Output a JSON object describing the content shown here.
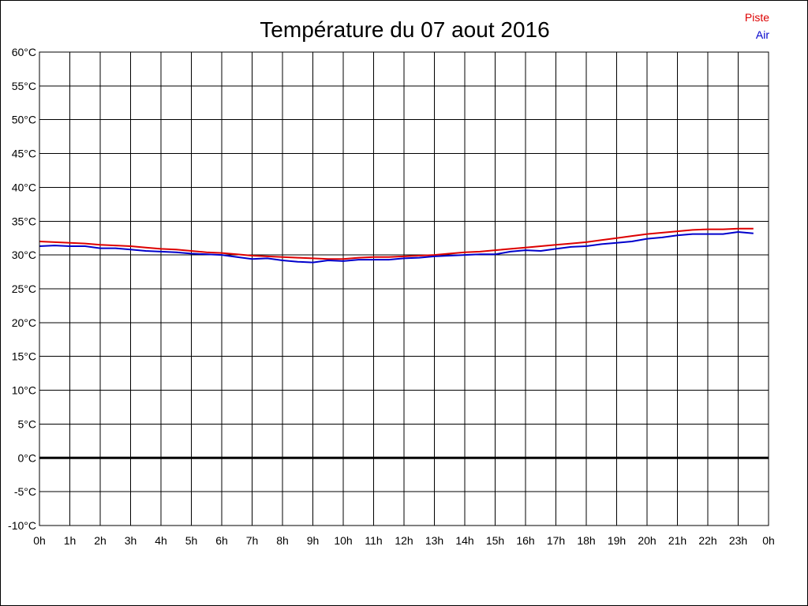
{
  "chart_data": {
    "type": "line",
    "title": "Température du 07 aout 2016",
    "xlabel": "",
    "ylabel": "",
    "ylim": [
      -10,
      60
    ],
    "xlim": [
      0,
      24
    ],
    "grid": true,
    "legend_position": "top-right",
    "y_ticks": [
      {
        "value": 60,
        "label": "60°C"
      },
      {
        "value": 55,
        "label": "55°C"
      },
      {
        "value": 50,
        "label": "50°C"
      },
      {
        "value": 45,
        "label": "45°C"
      },
      {
        "value": 40,
        "label": "40°C"
      },
      {
        "value": 35,
        "label": "35°C"
      },
      {
        "value": 30,
        "label": "30°C"
      },
      {
        "value": 25,
        "label": "25°C"
      },
      {
        "value": 20,
        "label": "20°C"
      },
      {
        "value": 15,
        "label": "15°C"
      },
      {
        "value": 10,
        "label": "10°C"
      },
      {
        "value": 5,
        "label": "5°C"
      },
      {
        "value": 0,
        "label": "0°C"
      },
      {
        "value": -5,
        "label": "-5°C"
      },
      {
        "value": -10,
        "label": "-10°C"
      }
    ],
    "x_ticks": [
      {
        "value": 0,
        "label": "0h"
      },
      {
        "value": 1,
        "label": "1h"
      },
      {
        "value": 2,
        "label": "2h"
      },
      {
        "value": 3,
        "label": "3h"
      },
      {
        "value": 4,
        "label": "4h"
      },
      {
        "value": 5,
        "label": "5h"
      },
      {
        "value": 6,
        "label": "6h"
      },
      {
        "value": 7,
        "label": "7h"
      },
      {
        "value": 8,
        "label": "8h"
      },
      {
        "value": 9,
        "label": "9h"
      },
      {
        "value": 10,
        "label": "10h"
      },
      {
        "value": 11,
        "label": "11h"
      },
      {
        "value": 12,
        "label": "12h"
      },
      {
        "value": 13,
        "label": "13h"
      },
      {
        "value": 14,
        "label": "14h"
      },
      {
        "value": 15,
        "label": "15h"
      },
      {
        "value": 16,
        "label": "16h"
      },
      {
        "value": 17,
        "label": "17h"
      },
      {
        "value": 18,
        "label": "18h"
      },
      {
        "value": 19,
        "label": "19h"
      },
      {
        "value": 20,
        "label": "20h"
      },
      {
        "value": 21,
        "label": "21h"
      },
      {
        "value": 22,
        "label": "22h"
      },
      {
        "value": 23,
        "label": "23h"
      },
      {
        "value": 24,
        "label": "0h"
      }
    ],
    "zero_line": 0,
    "series": [
      {
        "name": "Piste",
        "color": "#dd0000",
        "x": [
          0,
          0.5,
          1,
          1.5,
          2,
          2.5,
          3,
          3.5,
          4,
          4.5,
          5,
          5.5,
          6,
          6.5,
          7,
          7.5,
          8,
          8.5,
          9,
          9.5,
          10,
          10.5,
          11,
          11.5,
          12,
          12.5,
          13,
          13.5,
          14,
          14.5,
          15,
          15.5,
          16,
          16.5,
          17,
          17.5,
          18,
          18.5,
          19,
          19.5,
          20,
          20.5,
          21,
          21.5,
          22,
          22.5,
          23,
          23.5
        ],
        "y": [
          32.0,
          31.9,
          31.8,
          31.7,
          31.5,
          31.4,
          31.3,
          31.1,
          30.9,
          30.8,
          30.6,
          30.4,
          30.3,
          30.1,
          29.9,
          29.8,
          29.7,
          29.6,
          29.5,
          29.4,
          29.4,
          29.6,
          29.7,
          29.7,
          29.8,
          29.9,
          30.0,
          30.2,
          30.4,
          30.5,
          30.7,
          30.9,
          31.1,
          31.3,
          31.5,
          31.7,
          31.9,
          32.2,
          32.5,
          32.8,
          33.1,
          33.3,
          33.5,
          33.7,
          33.8,
          33.8,
          33.9,
          33.9
        ]
      },
      {
        "name": "Air",
        "color": "#0000cc",
        "x": [
          0,
          0.5,
          1,
          1.5,
          2,
          2.5,
          3,
          3.5,
          4,
          4.5,
          5,
          5.5,
          6,
          6.5,
          7,
          7.5,
          8,
          8.5,
          9,
          9.5,
          10,
          10.5,
          11,
          11.5,
          12,
          12.5,
          13,
          13.5,
          14,
          14.5,
          15,
          15.5,
          16,
          16.5,
          17,
          17.5,
          18,
          18.5,
          19,
          19.5,
          20,
          20.5,
          21,
          21.5,
          22,
          22.5,
          23,
          23.5
        ],
        "y": [
          31.3,
          31.4,
          31.3,
          31.3,
          31.0,
          31.0,
          30.8,
          30.6,
          30.5,
          30.4,
          30.2,
          30.1,
          30.0,
          29.7,
          29.4,
          29.5,
          29.2,
          29.0,
          28.9,
          29.2,
          29.1,
          29.3,
          29.3,
          29.3,
          29.5,
          29.6,
          29.8,
          29.9,
          30.0,
          30.1,
          30.1,
          30.5,
          30.7,
          30.6,
          30.9,
          31.2,
          31.3,
          31.6,
          31.8,
          32.0,
          32.4,
          32.6,
          32.9,
          33.1,
          33.1,
          33.1,
          33.4,
          33.2
        ]
      }
    ]
  }
}
